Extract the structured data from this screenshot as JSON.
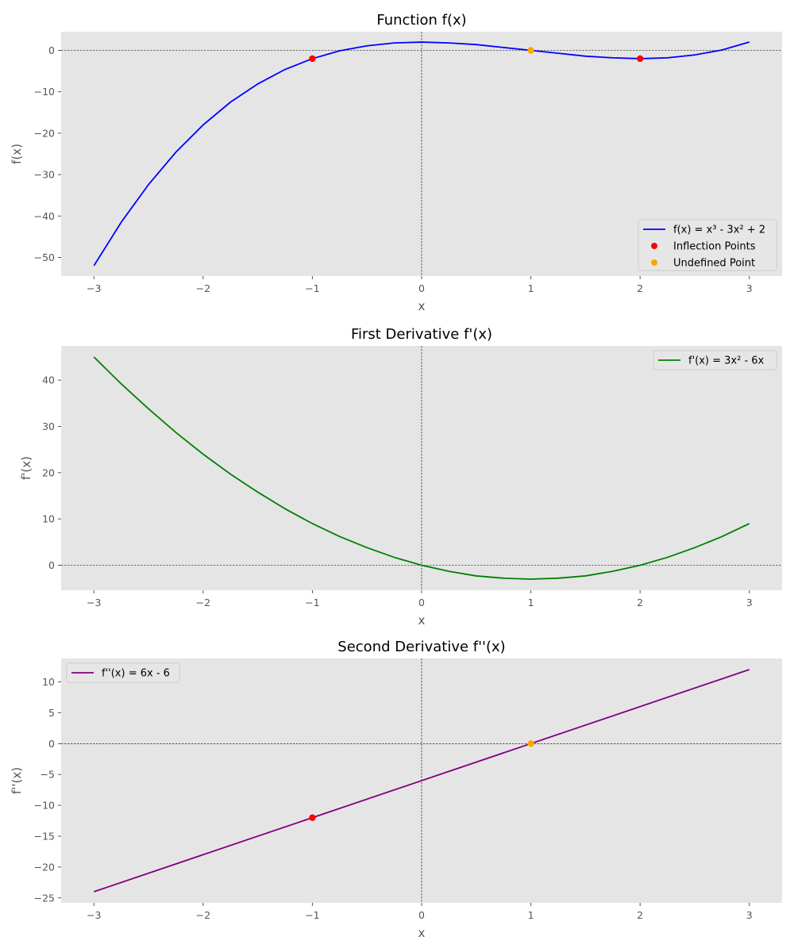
{
  "chart_data": [
    {
      "type": "line",
      "title": "Function f(x)",
      "xlabel": "x",
      "ylabel": "f(x)",
      "xlim": [
        -3.3,
        3.3
      ],
      "ylim": [
        -54.5,
        4.5
      ],
      "xticks": [
        -3,
        -2,
        -1,
        0,
        1,
        2,
        3
      ],
      "yticks": [
        0,
        -10,
        -20,
        -30,
        -40,
        -50
      ],
      "grid": false,
      "legend_position": "lower-right",
      "reference_lines": {
        "x": 0,
        "y": 0
      },
      "series": [
        {
          "name": "f(x) = x³ - 3x² + 2",
          "color": "#0000ff",
          "x": [
            -3,
            -2.75,
            -2.5,
            -2.25,
            -2,
            -1.75,
            -1.5,
            -1.25,
            -1,
            -0.75,
            -0.5,
            -0.25,
            0,
            0.25,
            0.5,
            0.75,
            1,
            1.25,
            1.5,
            1.75,
            2,
            2.25,
            2.5,
            2.75,
            3
          ],
          "y": [
            -52,
            -41.5,
            -32.4,
            -24.6,
            -18,
            -12.5,
            -8.1,
            -4.6,
            -2,
            -0.1,
            1.1,
            1.8,
            2,
            1.8,
            1.4,
            0.7,
            0,
            -0.7,
            -1.4,
            -1.8,
            -2,
            -1.8,
            -1.1,
            0.1,
            2
          ]
        }
      ],
      "points": [
        {
          "name": "Inflection Points",
          "color": "#ff0000",
          "x": [
            -1,
            2
          ],
          "y": [
            -2,
            -2
          ]
        },
        {
          "name": "Undefined Point",
          "color": "#ffa500",
          "x": [
            1
          ],
          "y": [
            0
          ]
        }
      ]
    },
    {
      "type": "line",
      "title": "First Derivative f'(x)",
      "xlabel": "x",
      "ylabel": "f'(x)",
      "xlim": [
        -3.3,
        3.3
      ],
      "ylim": [
        -5.4,
        47.4
      ],
      "xticks": [
        -3,
        -2,
        -1,
        0,
        1,
        2,
        3
      ],
      "yticks": [
        0,
        10,
        20,
        30,
        40
      ],
      "grid": false,
      "legend_position": "upper-right",
      "reference_lines": {
        "x": 0,
        "y": 0
      },
      "series": [
        {
          "name": "f'(x) = 3x² - 6x",
          "color": "#008000",
          "x": [
            -3,
            -2.75,
            -2.5,
            -2.25,
            -2,
            -1.75,
            -1.5,
            -1.25,
            -1,
            -0.75,
            -0.5,
            -0.25,
            0,
            0.25,
            0.5,
            0.75,
            1,
            1.25,
            1.5,
            1.75,
            2,
            2.25,
            2.5,
            2.75,
            3
          ],
          "y": [
            45,
            39.2,
            33.8,
            28.7,
            24,
            19.7,
            15.8,
            12.2,
            9,
            6.2,
            3.8,
            1.7,
            0,
            -1.3,
            -2.3,
            -2.8,
            -3,
            -2.8,
            -2.3,
            -1.3,
            0,
            1.7,
            3.8,
            6.2,
            9
          ]
        }
      ],
      "points": []
    },
    {
      "type": "line",
      "title": "Second Derivative f''(x)",
      "xlabel": "x",
      "ylabel": "f''(x)",
      "xlim": [
        -3.3,
        3.3
      ],
      "ylim": [
        -25.8,
        13.8
      ],
      "xticks": [
        -3,
        -2,
        -1,
        0,
        1,
        2,
        3
      ],
      "yticks": [
        10,
        5,
        0,
        -5,
        -10,
        -15,
        -20,
        -25
      ],
      "grid": false,
      "legend_position": "upper-left",
      "reference_lines": {
        "x": 0,
        "y": 0
      },
      "series": [
        {
          "name": "f''(x) = 6x - 6",
          "color": "#800080",
          "x": [
            -3,
            3
          ],
          "y": [
            -24,
            12
          ]
        }
      ],
      "points": [
        {
          "name": "",
          "color": "#ff0000",
          "x": [
            -1
          ],
          "y": [
            -12
          ]
        },
        {
          "name": "",
          "color": "#ffa500",
          "x": [
            1
          ],
          "y": [
            0
          ]
        }
      ]
    }
  ]
}
